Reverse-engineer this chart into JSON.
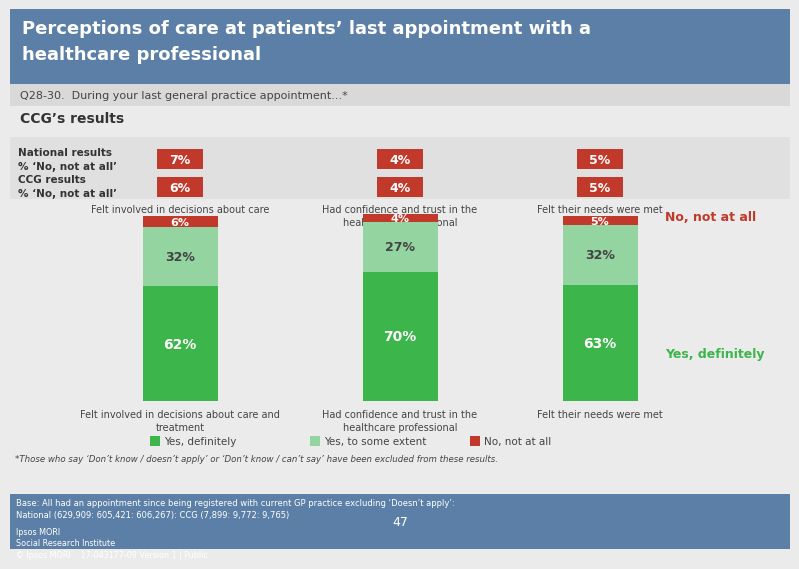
{
  "title": "Perceptions of care at patients’ last appointment with a\nhealthcare professional",
  "title_bg": "#5b7fa6",
  "subtitle": "Q28-30.  During your last general practice appointment...*",
  "subtitle_bg": "#d9d9d9",
  "section_label": "CCG’s results",
  "national_label": "National results\n% ‘No, not at all’",
  "ccg_label": "CCG results\n% ‘No, not at all’",
  "national_values": [
    7,
    4,
    5
  ],
  "ccg_values": [
    6,
    4,
    5
  ],
  "bar_categories_above": [
    "Felt involved in decisions about care\nand treatment",
    "Had confidence and trust in the\nhealthcare professional",
    "Felt their needs were met"
  ],
  "bar_categories_below": [
    "Felt involved in decisions about care and\ntreatment",
    "Had confidence and trust in the\nhealthcare professional",
    "Felt their needs were met"
  ],
  "yes_definitely": [
    62,
    70,
    63
  ],
  "yes_some_extent": [
    32,
    27,
    32
  ],
  "no_not_at_all": [
    6,
    4,
    5
  ],
  "color_yes_definitely": "#3cb54a",
  "color_yes_some_extent": "#93d4a0",
  "color_no_not_at_all": "#c0392b",
  "footnote1": "*Those who say ‘Don’t know / doesn’t apply’ or ‘Don’t know / can’t say’ have been excluded from these results.",
  "footnote2": "Base: All had an appointment since being registered with current GP practice excluding ‘Doesn’t apply’:\nNational (629,909: 605,421: 606,267): CCG (7,899: 9,772: 9,765)",
  "footer_text_left": "Ipsos MORI\nSocial Research Institute\n© Ipsos MORI    17-043177-09 Version 1 | Public",
  "page_number": "47",
  "legend_yes_definitely": "Yes, definitely",
  "legend_yes_some": "Yes, to some extent",
  "legend_no": "No, not at all",
  "bg_color": "#ebebeb",
  "table_bg": "#e0e0e0",
  "footer_bg": "#5b7fa6",
  "right_label_no": "No, not at all",
  "right_label_yes": "Yes, definitely"
}
